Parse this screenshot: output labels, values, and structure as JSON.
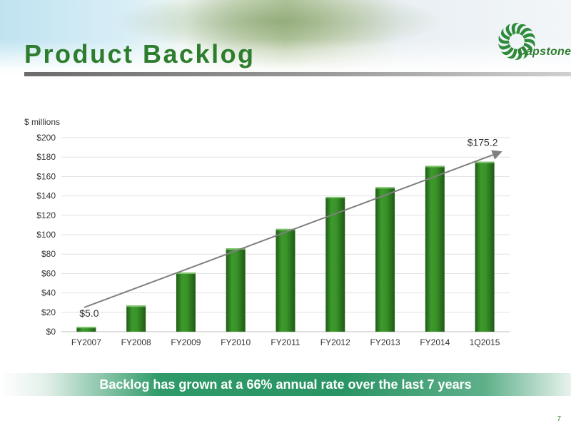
{
  "slide": {
    "title": "Product Backlog",
    "banner": "Backlog has grown at a 66% annual rate over the last 7 years",
    "page_number": "7",
    "logo_text": "Capstone",
    "colors": {
      "title": "#2e7d2e",
      "bar": "#2f7d22",
      "banner": "#2a9464",
      "trend_arrow": "#7f7f7f"
    }
  },
  "chart_data": {
    "type": "bar",
    "title": "",
    "xlabel": "",
    "ylabel": "$ millions",
    "categories": [
      "FY2007",
      "FY2008",
      "FY2009",
      "FY2010",
      "FY2011",
      "FY2012",
      "FY2013",
      "FY2014",
      "1Q2015"
    ],
    "values": [
      5.0,
      27,
      61,
      86,
      106,
      139,
      149,
      171,
      175.2
    ],
    "ylim": [
      0,
      200
    ],
    "yticks": [
      0,
      20,
      40,
      60,
      80,
      100,
      120,
      140,
      160,
      180,
      200
    ],
    "ytick_labels": [
      "$0",
      "$20",
      "$40",
      "$60",
      "$80",
      "$100",
      "$120",
      "$140",
      "$160",
      "$180",
      "$200"
    ],
    "grid": true,
    "legend": "none",
    "annotations": [
      {
        "category": "FY2007",
        "text": "$5.0"
      },
      {
        "category": "1Q2015",
        "text": "$175.2"
      }
    ],
    "trend_arrow": {
      "from": {
        "category": "FY2007",
        "value": 25
      },
      "to": {
        "category": "1Q2015",
        "value": 180
      }
    }
  }
}
